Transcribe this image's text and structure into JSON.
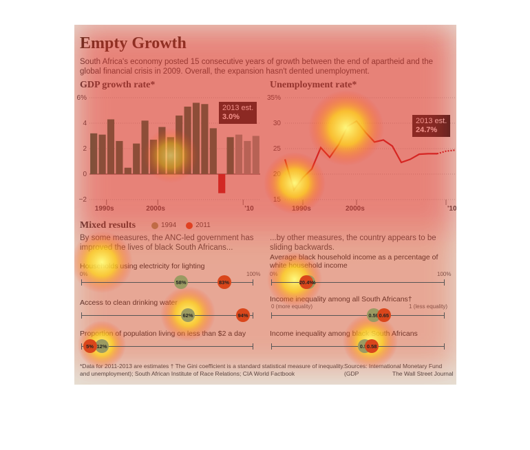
{
  "title": "Empty Growth",
  "subtitle": "South Africa's economy posted 15 consecutive years of growth between the end of apartheid and the global financial crisis in 2009. Overall, the expansion hasn't dented unemployment.",
  "colors": {
    "background": "#e6e2d8",
    "gdp_bar": "#1e6b4b",
    "gdp_negative": "#b8191b",
    "gdp_estimate": "#7c9a8a",
    "unemployment_line": "#c0121a",
    "dot_1994": "#9a9a62",
    "dot_2011": "#d9461b"
  },
  "chart_data": [
    {
      "type": "bar",
      "title": "GDP growth rate*",
      "ylim": [
        -2,
        6
      ],
      "yticks": [
        "6%",
        "4",
        "2",
        "0",
        "−2"
      ],
      "xticks": [
        "1990s",
        "2000s",
        "'10"
      ],
      "x": [
        1994,
        1995,
        1996,
        1997,
        1998,
        1999,
        2000,
        2001,
        2002,
        2003,
        2004,
        2005,
        2006,
        2007,
        2008,
        2009,
        2010,
        2011,
        2012,
        2013
      ],
      "values": [
        3.2,
        3.1,
        4.3,
        2.6,
        0.5,
        2.4,
        4.2,
        2.7,
        3.7,
        2.9,
        4.6,
        5.3,
        5.6,
        5.5,
        3.6,
        -1.5,
        2.9,
        3.1,
        2.6,
        3.0
      ],
      "estimate_from": 2011,
      "annotation": {
        "label": "2013 est.",
        "value": "3.0%"
      }
    },
    {
      "type": "line",
      "title": "Unemployment rate*",
      "ylim": [
        15,
        35
      ],
      "yticks": [
        "35%",
        "30",
        "25",
        "20",
        "15"
      ],
      "xticks": [
        "1990s",
        "2000s",
        "'10"
      ],
      "x": [
        1994,
        1995,
        1996,
        1997,
        1998,
        1999,
        2000,
        2001,
        2002,
        2003,
        2004,
        2005,
        2006,
        2007,
        2008,
        2009,
        2010,
        2011,
        2012,
        2013
      ],
      "values": [
        22.9,
        16.9,
        19.3,
        21.0,
        25.2,
        23.3,
        25.8,
        29.4,
        30.4,
        28.2,
        26.3,
        26.7,
        25.5,
        22.3,
        22.9,
        23.9,
        24.0,
        24.0,
        24.5,
        24.7
      ],
      "estimate_from": 2011,
      "annotation": {
        "label": "2013 est.",
        "value": "24.7%"
      }
    }
  ],
  "mixed": {
    "title": "Mixed results",
    "legend": [
      {
        "label": "1994"
      },
      {
        "label": "2011"
      }
    ],
    "left_intro": "By some measures, the ANC-led government has improved the lives of black South Africans...",
    "right_intro": "...by other measures, the country appears to be sliding backwards.",
    "left_rows": [
      {
        "label": "Households using electricity for lighting",
        "scale_min": "0%",
        "scale_max": "100%",
        "v1994": 58,
        "v2011": 83,
        "t1994": "58%",
        "t2011": "83%"
      },
      {
        "label": "Access to clean drinking water",
        "v1994": 62,
        "v2011": 94,
        "t1994": "62%",
        "t2011": "94%"
      },
      {
        "label": "Proportion of population living on less than $2 a day",
        "v1994": 12,
        "v2011": 5,
        "t1994": "12%",
        "t2011": "5%"
      }
    ],
    "right_rows": [
      {
        "label": "Average black household income as a percentage of white household income",
        "scale_min": "0%",
        "scale_max": "100%",
        "v1994": 21.5,
        "v2011": 20.4,
        "t1994": "21.5%",
        "t2011": "20.4%"
      },
      {
        "label": "Income inequality among all South Africans†",
        "scale_min": "0 (more equality)",
        "scale_max": "1 (less equality)",
        "v1994": 0.59,
        "v2011": 0.65,
        "t1994": "0.59",
        "t2011": "0.65"
      },
      {
        "label": "Income inequality among black South Africans",
        "v1994": 0.54,
        "v2011": 0.58,
        "t1994": "0.54",
        "t2011": "0.58"
      }
    ]
  },
  "footer": {
    "notes": "*Data for 2011-2013 are estimates  † The Gini coefficient is a standard statistical measure of inequality.",
    "sources_left": "and unemployment); South African Institute of Race Relations; CIA World Factbook",
    "sources_right_1": "Sources: International Monetary Fund (GDP",
    "sources_right_2": "The Wall Street Journal"
  }
}
